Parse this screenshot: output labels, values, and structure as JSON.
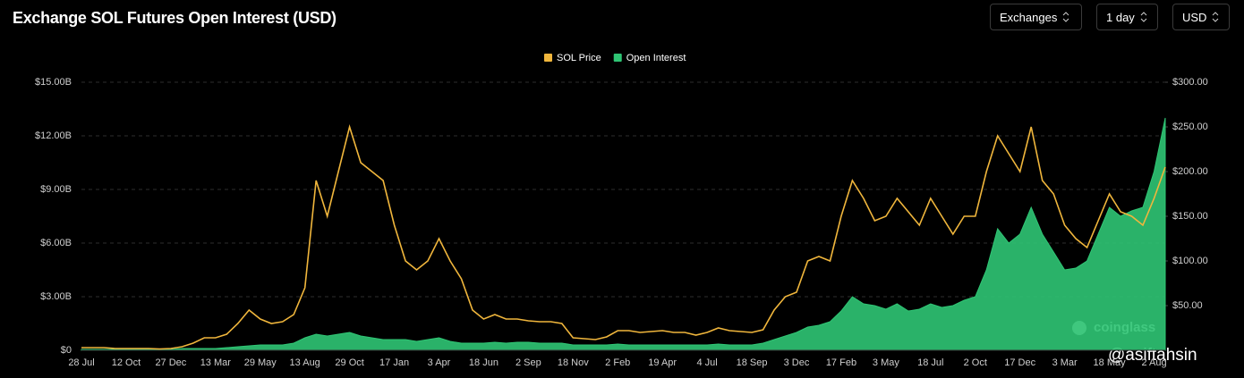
{
  "header": {
    "title": "Exchange SOL Futures Open Interest (USD)",
    "controls": [
      "Exchanges",
      "1 day",
      "USD"
    ]
  },
  "watermarks": [
    "coinglass",
    "@asiftahsin"
  ],
  "chart_data": {
    "type": "line",
    "legend": "top",
    "categories": [
      "28 Jul",
      null,
      null,
      null,
      "12 Oct",
      null,
      null,
      null,
      "27 Dec",
      null,
      null,
      null,
      "13 Mar",
      null,
      null,
      null,
      "29 May",
      null,
      null,
      null,
      "13 Aug",
      null,
      null,
      null,
      "29 Oct",
      null,
      null,
      null,
      "17 Jan",
      null,
      null,
      null,
      "3 Apr",
      null,
      null,
      null,
      "18 Jun",
      null,
      null,
      null,
      "2 Sep",
      null,
      null,
      null,
      "18 Nov",
      null,
      null,
      null,
      "2 Feb",
      null,
      null,
      null,
      "19 Apr",
      null,
      null,
      null,
      "4 Jul",
      null,
      null,
      null,
      "18 Sep",
      null,
      null,
      null,
      "3 Dec",
      null,
      null,
      null,
      "17 Feb",
      null,
      null,
      null,
      "3 May",
      null,
      null,
      null,
      "18 Jul",
      null,
      null,
      null,
      "2 Oct",
      null,
      null,
      null,
      "17 Dec",
      null,
      null,
      null,
      "3 Mar",
      null,
      null,
      null,
      "18 May",
      null,
      null,
      null,
      "2 Aug",
      null
    ],
    "series": [
      {
        "name": "SOL Price",
        "color": "#f0b63c",
        "axis": "y2",
        "values": [
          3,
          3,
          3,
          2,
          2,
          2,
          2,
          1.5,
          2,
          4,
          8,
          14,
          14,
          18,
          30,
          45,
          35,
          30,
          32,
          40,
          70,
          190,
          150,
          200,
          250,
          210,
          200,
          190,
          140,
          100,
          90,
          100,
          125,
          100,
          80,
          45,
          35,
          40,
          35,
          35,
          33,
          32,
          32,
          30,
          14,
          13,
          12,
          15,
          22,
          22,
          20,
          21,
          22,
          20,
          20,
          17,
          20,
          25,
          22,
          21,
          20,
          23,
          45,
          60,
          65,
          100,
          105,
          100,
          150,
          190,
          170,
          145,
          150,
          170,
          155,
          140,
          170,
          150,
          130,
          150,
          150,
          200,
          240,
          220,
          200,
          250,
          190,
          175,
          140,
          125,
          115,
          145,
          175,
          155,
          150,
          140,
          170,
          205
        ]
      },
      {
        "name": "Open Interest",
        "color": "#2fc574",
        "values": [
          0.05,
          0.05,
          0.05,
          0.05,
          0.05,
          0.05,
          0.05,
          0.05,
          0.05,
          0.1,
          0.1,
          0.1,
          0.1,
          0.15,
          0.2,
          0.25,
          0.3,
          0.3,
          0.3,
          0.4,
          0.7,
          0.9,
          0.8,
          0.9,
          1.0,
          0.8,
          0.7,
          0.6,
          0.6,
          0.6,
          0.5,
          0.6,
          0.7,
          0.5,
          0.4,
          0.4,
          0.4,
          0.45,
          0.4,
          0.45,
          0.45,
          0.4,
          0.4,
          0.4,
          0.3,
          0.3,
          0.3,
          0.3,
          0.35,
          0.3,
          0.3,
          0.3,
          0.3,
          0.3,
          0.3,
          0.3,
          0.3,
          0.35,
          0.3,
          0.3,
          0.3,
          0.4,
          0.6,
          0.8,
          1.0,
          1.3,
          1.4,
          1.6,
          2.2,
          3.0,
          2.6,
          2.5,
          2.3,
          2.6,
          2.2,
          2.3,
          2.6,
          2.4,
          2.5,
          2.8,
          3.0,
          4.5,
          6.8,
          6.0,
          6.5,
          8.0,
          6.5,
          5.5,
          4.5,
          4.6,
          5.0,
          6.5,
          8.0,
          7.5,
          7.8,
          8.0,
          10.0,
          13.0
        ]
      }
    ],
    "ylim": [
      0,
      15
    ],
    "yticks": [
      {
        "value": 0,
        "label": "$0"
      },
      {
        "value": 3,
        "label": "$3.00B"
      },
      {
        "value": 6,
        "label": "$6.00B"
      },
      {
        "value": 9,
        "label": "$9.00B"
      },
      {
        "value": 12,
        "label": "$12.00B"
      },
      {
        "value": 15,
        "label": "$15.00B"
      }
    ],
    "y2lim": [
      0,
      300
    ],
    "y2ticks": [
      {
        "value": 50,
        "label": "$50.00"
      },
      {
        "value": 100,
        "label": "$100.00"
      },
      {
        "value": 150,
        "label": "$150.00"
      },
      {
        "value": 200,
        "label": "$200.00"
      },
      {
        "value": 250,
        "label": "$250.00"
      },
      {
        "value": 300,
        "label": "$300.00"
      }
    ],
    "grid": true
  }
}
